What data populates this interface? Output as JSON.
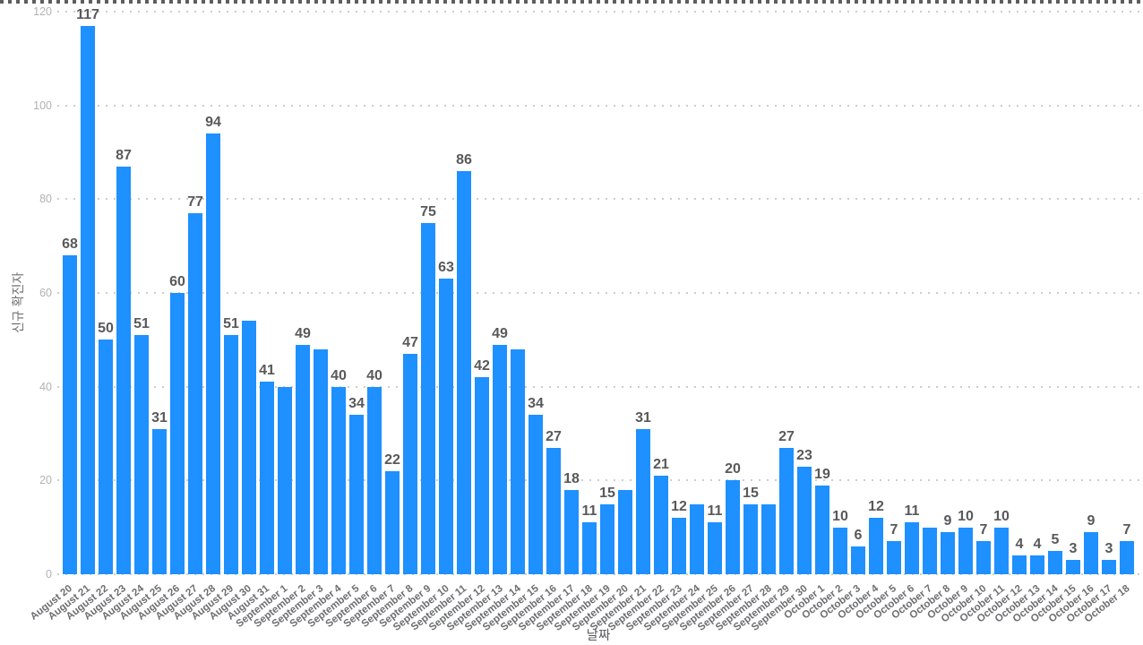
{
  "colors": {
    "bar": "#1E90FF",
    "value_label": "#58595B",
    "x_tick_label": "#6D6E71",
    "y_tick_label": "#B0B2B5",
    "gridline": "#CDCDCD",
    "top_border": "#5E5E5E",
    "background": "#FFFFFF"
  },
  "chart_data": {
    "type": "bar",
    "title": "",
    "xlabel": "날짜",
    "ylabel": "신규 확진자",
    "ylim": [
      0,
      120
    ],
    "yticks": [
      0,
      20,
      40,
      60,
      80,
      100,
      120
    ],
    "grid": "dotted horizontal",
    "legend": "none",
    "categories": [
      "August 20",
      "August 21",
      "August 22",
      "August 23",
      "August 24",
      "August 25",
      "August 26",
      "August 27",
      "August 28",
      "August 29",
      "August 30",
      "August 31",
      "September 1",
      "September 2",
      "September 3",
      "September 4",
      "September 5",
      "September 6",
      "September 7",
      "September 8",
      "September 9",
      "September 10",
      "September 11",
      "September 12",
      "September 13",
      "September 14",
      "September 15",
      "September 16",
      "September 17",
      "September 18",
      "September 19",
      "September 20",
      "September 21",
      "September 22",
      "September 23",
      "September 24",
      "September 25",
      "September 26",
      "September 27",
      "September 28",
      "September 29",
      "September 30",
      "October 1",
      "October 2",
      "October 3",
      "October 4",
      "October 5",
      "October 6",
      "October 7",
      "October 8",
      "October 9",
      "October 10",
      "October 11",
      "October 12",
      "October 13",
      "October 14",
      "October 15",
      "October 16",
      "October 17",
      "October 18"
    ],
    "values": [
      68,
      117,
      50,
      87,
      51,
      31,
      60,
      77,
      94,
      51,
      54,
      41,
      40,
      49,
      48,
      40,
      34,
      40,
      22,
      47,
      75,
      63,
      86,
      42,
      49,
      48,
      34,
      27,
      18,
      11,
      15,
      18,
      31,
      21,
      12,
      15,
      11,
      20,
      15,
      15,
      27,
      23,
      19,
      10,
      6,
      12,
      7,
      11,
      10,
      9,
      10,
      7,
      10,
      4,
      4,
      5,
      3,
      9,
      3,
      7
    ],
    "label_hidden_indices": [
      10,
      12,
      14,
      25,
      31,
      35,
      39,
      48
    ]
  }
}
